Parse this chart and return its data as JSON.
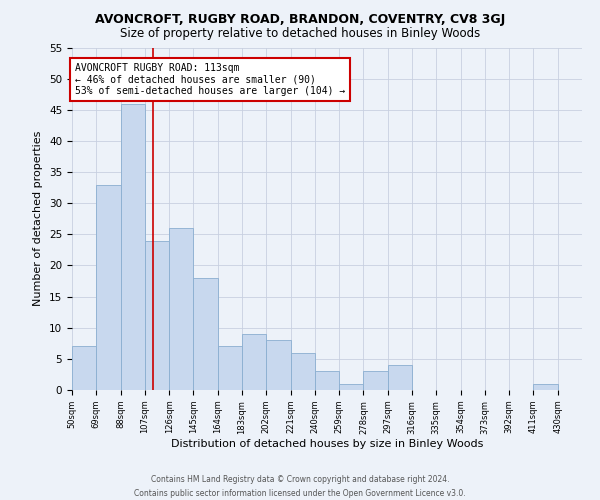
{
  "title": "AVONCROFT, RUGBY ROAD, BRANDON, COVENTRY, CV8 3GJ",
  "subtitle": "Size of property relative to detached houses in Binley Woods",
  "xlabel": "Distribution of detached houses by size in Binley Woods",
  "ylabel": "Number of detached properties",
  "footer_line1": "Contains HM Land Registry data © Crown copyright and database right 2024.",
  "footer_line2": "Contains public sector information licensed under the Open Government Licence v3.0.",
  "bin_labels": [
    "50sqm",
    "69sqm",
    "88sqm",
    "107sqm",
    "126sqm",
    "145sqm",
    "164sqm",
    "183sqm",
    "202sqm",
    "221sqm",
    "240sqm",
    "259sqm",
    "278sqm",
    "297sqm",
    "316sqm",
    "335sqm",
    "354sqm",
    "373sqm",
    "392sqm",
    "411sqm",
    "430sqm"
  ],
  "bin_edges": [
    50,
    69,
    88,
    107,
    126,
    145,
    164,
    183,
    202,
    221,
    240,
    259,
    278,
    297,
    316,
    335,
    354,
    373,
    392,
    411,
    430
  ],
  "bin_width": 19,
  "counts": [
    7,
    33,
    46,
    24,
    26,
    18,
    7,
    9,
    8,
    6,
    3,
    1,
    3,
    4,
    0,
    0,
    0,
    0,
    0,
    1,
    0
  ],
  "bar_color": "#c8d8ee",
  "bar_edge_color": "#8aaed0",
  "vline_x": 113,
  "vline_color": "#cc0000",
  "annotation_text": "AVONCROFT RUGBY ROAD: 113sqm\n← 46% of detached houses are smaller (90)\n53% of semi-detached houses are larger (104) →",
  "annotation_box_color": "#ffffff",
  "annotation_box_edge": "#cc0000",
  "ylim": [
    0,
    55
  ],
  "yticks": [
    0,
    5,
    10,
    15,
    20,
    25,
    30,
    35,
    40,
    45,
    50,
    55
  ],
  "title_fontsize": 9,
  "subtitle_fontsize": 8.5,
  "xlabel_fontsize": 8,
  "ylabel_fontsize": 8,
  "grid_color": "#c8d0e0",
  "background_color": "#edf2f9"
}
